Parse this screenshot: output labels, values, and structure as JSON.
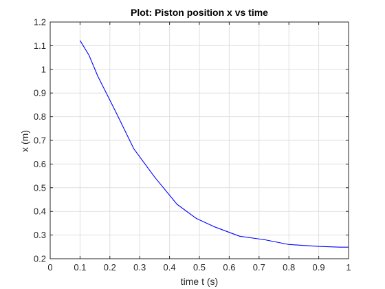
{
  "chart_data": {
    "type": "line",
    "title": "Plot: Piston position x vs time",
    "xlabel": "time t (s)",
    "ylabel": "x (m)",
    "xlim": [
      0,
      1
    ],
    "ylim": [
      0.2,
      1.2
    ],
    "x_ticks": [
      "0",
      "0.1",
      "0.2",
      "0.3",
      "0.4",
      "0.5",
      "0.6",
      "0.7",
      "0.8",
      "0.9",
      "1"
    ],
    "y_ticks": [
      "0.2",
      "0.3",
      "0.4",
      "0.5",
      "0.6",
      "0.7",
      "0.8",
      "0.9",
      "1",
      "1.1",
      "1.2"
    ],
    "grid": true,
    "series": [
      {
        "color": "#0000ff",
        "x": [
          0.1,
          0.13,
          0.16,
          0.22,
          0.28,
          0.35,
          0.425,
          0.49,
          0.55,
          0.635,
          0.72,
          0.8,
          0.9,
          0.97,
          1.0
        ],
        "y": [
          1.122,
          1.06,
          0.97,
          0.82,
          0.665,
          0.545,
          0.43,
          0.37,
          0.335,
          0.295,
          0.28,
          0.26,
          0.252,
          0.249,
          0.249
        ]
      }
    ]
  }
}
